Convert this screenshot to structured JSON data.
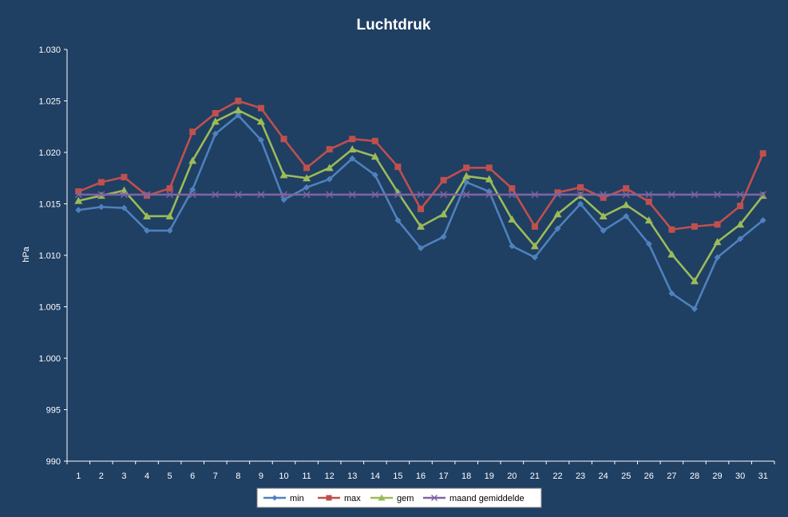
{
  "chart_data": {
    "type": "line",
    "title": "Luchtdruk",
    "xlabel": "",
    "ylabel": "hPa",
    "ylim": [
      990,
      1030
    ],
    "yticks": [
      990,
      995,
      1000,
      1005,
      1010,
      1015,
      1020,
      1025,
      1030
    ],
    "ytick_labels": [
      "990",
      "995",
      "1.000",
      "1.005",
      "1.010",
      "1.015",
      "1.020",
      "1.025",
      "1.030"
    ],
    "categories": [
      "1",
      "2",
      "3",
      "4",
      "5",
      "6",
      "7",
      "8",
      "9",
      "10",
      "11",
      "12",
      "13",
      "14",
      "15",
      "16",
      "17",
      "18",
      "19",
      "20",
      "21",
      "22",
      "23",
      "24",
      "25",
      "26",
      "27",
      "28",
      "29",
      "30",
      "31"
    ],
    "grid": false,
    "legend_position": "bottom",
    "series": [
      {
        "name": "min",
        "color": "#4f81bd",
        "marker": "diamond",
        "values": [
          1014.4,
          1014.7,
          1014.6,
          1012.4,
          1012.4,
          1016.4,
          1021.8,
          1023.6,
          1021.2,
          1015.4,
          1016.6,
          1017.4,
          1019.4,
          1017.8,
          1013.4,
          1010.7,
          1011.8,
          1017.1,
          1016.2,
          1010.9,
          1009.8,
          1012.6,
          1015.0,
          1012.4,
          1013.8,
          1011.1,
          1006.3,
          1004.8,
          1009.8,
          1011.6,
          1013.4
        ]
      },
      {
        "name": "max",
        "color": "#c0504d",
        "marker": "square",
        "values": [
          1016.2,
          1017.1,
          1017.6,
          1015.8,
          1016.5,
          1022.0,
          1023.8,
          1025.0,
          1024.3,
          1021.3,
          1018.5,
          1020.3,
          1021.3,
          1021.1,
          1018.6,
          1014.5,
          1017.3,
          1018.5,
          1018.5,
          1016.5,
          1012.8,
          1016.1,
          1016.6,
          1015.6,
          1016.5,
          1015.2,
          1012.5,
          1012.8,
          1013.0,
          1014.8,
          1019.9
        ]
      },
      {
        "name": "gem",
        "color": "#9bbb59",
        "marker": "triangle",
        "values": [
          1015.3,
          1015.8,
          1016.3,
          1013.8,
          1013.8,
          1019.2,
          1023.0,
          1024.1,
          1023.0,
          1017.8,
          1017.5,
          1018.5,
          1020.3,
          1019.6,
          1016.1,
          1012.8,
          1014.0,
          1017.7,
          1017.4,
          1013.5,
          1010.9,
          1014.0,
          1015.8,
          1013.8,
          1014.9,
          1013.4,
          1010.1,
          1007.5,
          1011.3,
          1013.0,
          1015.8
        ]
      },
      {
        "name": "maand gemiddelde",
        "color": "#8064a2",
        "marker": "x",
        "values": [
          1015.9,
          1015.9,
          1015.9,
          1015.9,
          1015.9,
          1015.9,
          1015.9,
          1015.9,
          1015.9,
          1015.9,
          1015.9,
          1015.9,
          1015.9,
          1015.9,
          1015.9,
          1015.9,
          1015.9,
          1015.9,
          1015.9,
          1015.9,
          1015.9,
          1015.9,
          1015.9,
          1015.9,
          1015.9,
          1015.9,
          1015.9,
          1015.9,
          1015.9,
          1015.9,
          1015.9
        ]
      }
    ]
  },
  "colors": {
    "background": "#1f3f63",
    "axis": "#ffffff",
    "legend_background": "#ffffff"
  }
}
